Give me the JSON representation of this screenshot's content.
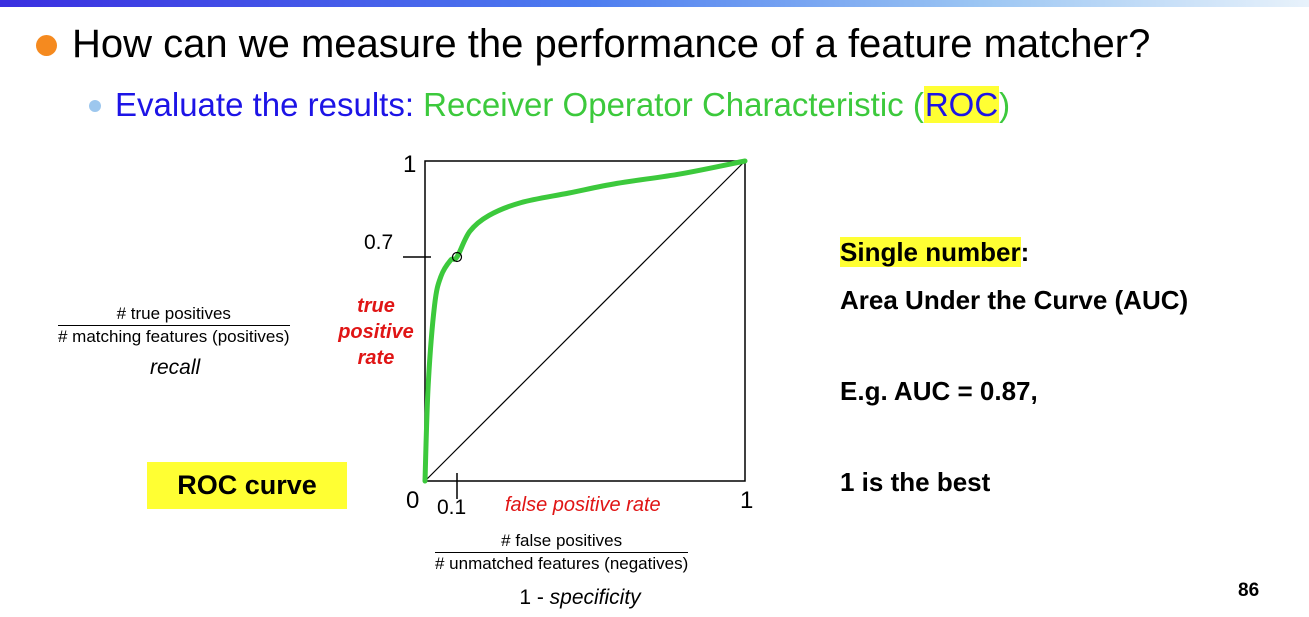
{
  "heading": "How can we measure the performance of a feature matcher?",
  "subheading": {
    "lead": "Evaluate the results: ",
    "term": "Receiver Operator Characteristic (",
    "abbr": "ROC",
    "close": ")"
  },
  "recall_fraction": {
    "numerator": "# true positives",
    "denominator": "# matching features (positives)"
  },
  "recall_label": "recall",
  "y_axis_label": [
    "true",
    "positive",
    "rate"
  ],
  "roc_label": "ROC curve",
  "x_axis_label": "false positive rate",
  "specificity_fraction": {
    "numerator": "# false positives",
    "denominator": "# unmatched features (negatives)"
  },
  "specificity_prefix": "1 - ",
  "specificity_word": "specificity",
  "tick_labels": {
    "y_top": "1",
    "y_mark": "0.7",
    "origin": "0",
    "x_mark": "0.1",
    "x_right": "1"
  },
  "auc_text": {
    "single": "Single number",
    "colon": ":",
    "area": "Area Under the Curve (AUC)",
    "example": "E.g. AUC = 0.87,",
    "best": "1 is the best"
  },
  "page_number": "86",
  "colors": {
    "curve": "#3cc93c",
    "accent_red": "#e01515",
    "highlight": "#ffff33",
    "title_blue": "#1d14e6",
    "bullet_orange": "#f58a1f"
  },
  "chart_data": {
    "type": "line",
    "xlim": [
      0,
      1
    ],
    "ylim": [
      0,
      1
    ],
    "series": [
      {
        "x": [
          0,
          0.01,
          0.03,
          0.05,
          0.08,
          0.1,
          0.14,
          0.2,
          0.3,
          0.45,
          0.6,
          0.8,
          1.0
        ],
        "y": [
          0,
          0.3,
          0.55,
          0.64,
          0.69,
          0.7,
          0.78,
          0.83,
          0.87,
          0.9,
          0.93,
          0.96,
          1.0
        ]
      },
      {
        "x": [
          0,
          1
        ],
        "y": [
          0,
          1
        ]
      }
    ],
    "marked_point": {
      "x": 0.1,
      "y": 0.7
    }
  }
}
